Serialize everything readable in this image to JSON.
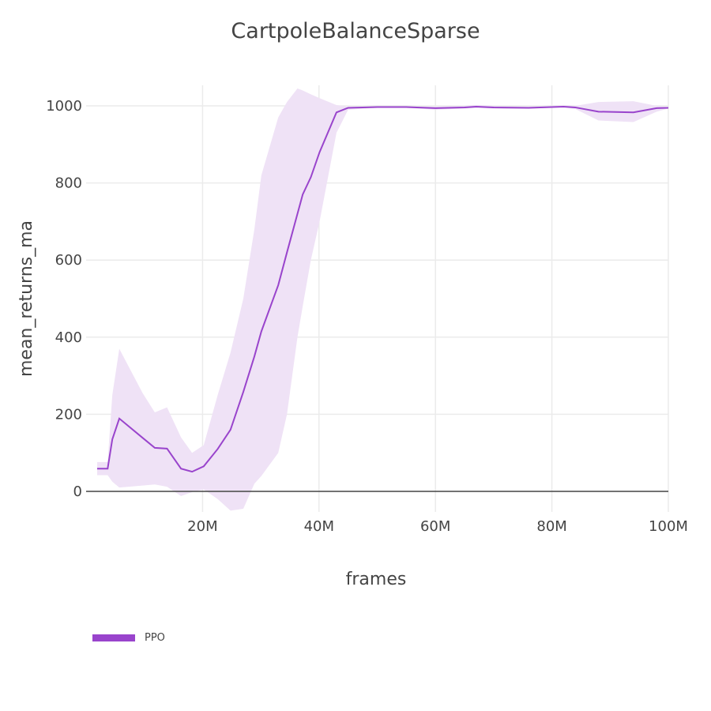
{
  "chart_data": {
    "type": "line",
    "title": "CartpoleBalanceSparse",
    "xlabel": "frames",
    "ylabel": "mean_returns_ma",
    "xlim": [
      0,
      100000000
    ],
    "ylim": [
      -80,
      1060
    ],
    "x_tick_labels": [
      "20M",
      "40M",
      "60M",
      "80M",
      "100M"
    ],
    "x_ticks": [
      20000000,
      40000000,
      60000000,
      80000000,
      100000000
    ],
    "y_tick_labels": [
      "0",
      "200",
      "400",
      "600",
      "800",
      "1000"
    ],
    "y_ticks": [
      0,
      200,
      400,
      600,
      800,
      1000
    ],
    "grid": true,
    "legend_position": "bottom-left",
    "series": [
      {
        "name": "PPO",
        "color": "#9944cc",
        "band_color": "#efe2f6",
        "x": [
          1.9,
          3.7,
          4.5,
          5.7,
          9.7,
          11.8,
          13.9,
          16.3,
          18.2,
          20.2,
          22.6,
          24.8,
          27.0,
          28.9,
          30.1,
          33.0,
          34.5,
          36.3,
          37.2,
          38.6,
          40.1,
          43.0,
          45.0,
          50.0,
          55.0,
          60.0,
          65.0,
          67.0,
          70.0,
          76.0,
          80.0,
          82.0,
          84.0,
          88.0,
          94.0,
          98.0,
          100.0
        ],
        "mean": [
          59,
          59,
          135,
          189,
          139,
          113,
          111,
          59,
          51,
          65,
          110,
          160,
          258,
          350,
          415,
          535,
          620,
          720,
          770,
          815,
          880,
          983,
          995,
          997,
          997,
          994,
          996,
          998,
          996,
          995,
          997,
          998,
          996,
          985,
          983,
          994,
          995
        ],
        "upper": [
          76,
          76,
          250,
          370,
          255,
          205,
          218,
          140,
          100,
          120,
          250,
          360,
          500,
          680,
          820,
          970,
          1010,
          1045,
          1040,
          1030,
          1020,
          1002,
          998,
          998,
          998,
          998,
          1000,
          1002,
          1000,
          998,
          1000,
          1001,
          1000,
          1010,
          1012,
          1000,
          997
        ],
        "lower": [
          42,
          42,
          25,
          10,
          15,
          18,
          12,
          -12,
          -2,
          5,
          -20,
          -50,
          -45,
          20,
          40,
          100,
          200,
          400,
          480,
          600,
          700,
          930,
          990,
          995,
          995,
          990,
          993,
          995,
          993,
          993,
          995,
          996,
          992,
          962,
          958,
          985,
          993
        ]
      }
    ]
  },
  "title": "CartpoleBalanceSparse",
  "xaxis": {
    "label": "frames"
  },
  "yaxis": {
    "label": "mean_returns_ma"
  },
  "legend": {
    "items": [
      {
        "label": "PPO",
        "color": "#9944cc"
      }
    ]
  }
}
